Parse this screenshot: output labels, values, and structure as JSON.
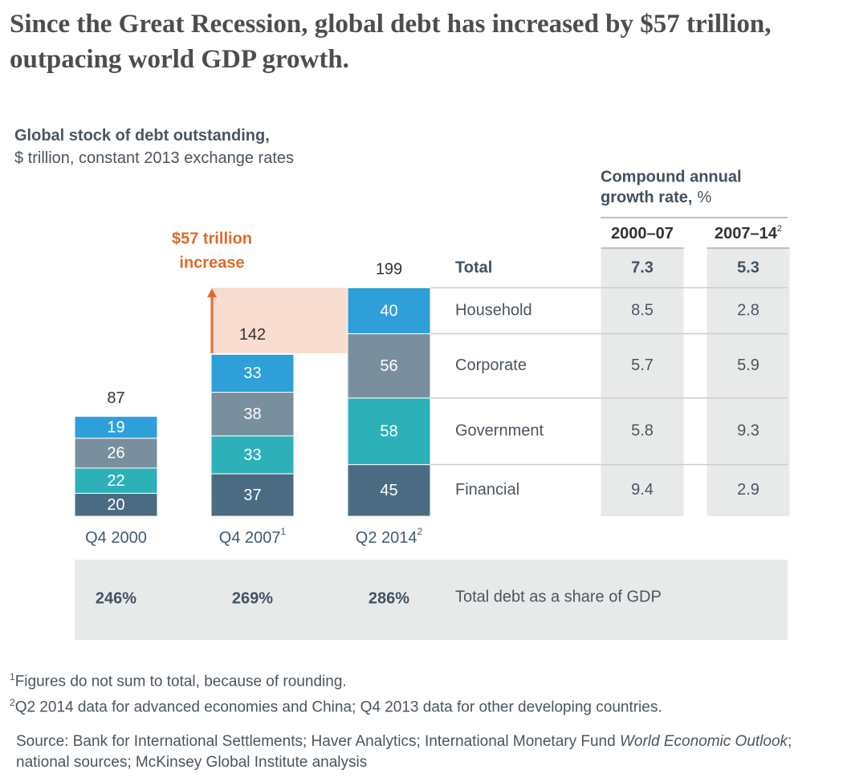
{
  "chart_data": {
    "type": "stacked_bar",
    "headline": "Since the Great Recession, global debt has increased by $57 trillion, outpacing world GDP growth.",
    "title": "Global stock of debt outstanding,",
    "subtitle": "$ trillion, constant 2013 exchange rates",
    "categories": [
      "Q4 2000",
      "Q4 2007",
      "Q2 2014"
    ],
    "category_notes": [
      null,
      "1",
      "2"
    ],
    "totals": [
      87,
      142,
      199
    ],
    "series": [
      {
        "name": "Financial",
        "color": "#4a6b82",
        "values": [
          20,
          37,
          45
        ],
        "growth": [
          9.4,
          2.9
        ]
      },
      {
        "name": "Government",
        "color": "#2eb0b8",
        "values": [
          22,
          33,
          58
        ],
        "growth": [
          5.8,
          9.3
        ]
      },
      {
        "name": "Corporate",
        "color": "#7a8f9e",
        "values": [
          26,
          38,
          56
        ],
        "growth": [
          5.7,
          5.9
        ]
      },
      {
        "name": "Household",
        "color": "#2e9fd9",
        "values": [
          19,
          33,
          40
        ],
        "growth": [
          8.5,
          2.8
        ]
      }
    ],
    "annotation": [
      "$57 trillion",
      "increase"
    ],
    "growth_title": [
      "Compound annual",
      "growth rate,",
      "%"
    ],
    "growth_columns": [
      "2000–07",
      "2007–14"
    ],
    "growth_column_notes": [
      null,
      "2"
    ],
    "total_label": "Total",
    "total_growth": [
      7.3,
      5.3
    ],
    "gdp_share": {
      "label": "Total debt as a share of GDP",
      "values": [
        246,
        269,
        286
      ],
      "value_labels": [
        "246%",
        "269%",
        "286%"
      ]
    },
    "footnotes": [
      {
        "mark": "1",
        "text": "Figures do not sum to total, because of rounding."
      },
      {
        "mark": "2",
        "text": "Q2 2014 data for advanced economies and China; Q4 2013 data for other developing countries."
      }
    ],
    "source": [
      "Source: Bank for International Settlements; Haver Analytics; International Monetary Fund ",
      "World Economic Outlook",
      "; national sources; McKinsey Global Institute analysis"
    ]
  }
}
